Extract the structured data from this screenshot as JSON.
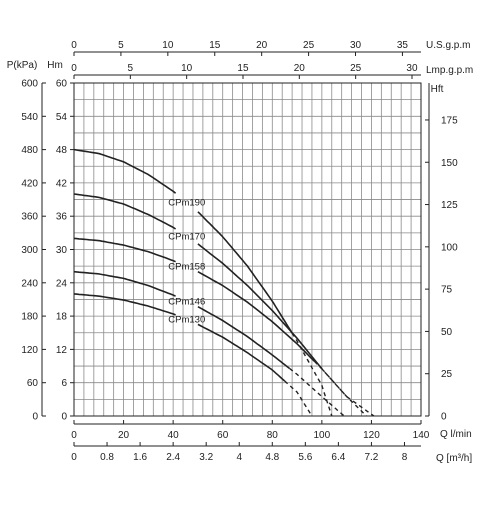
{
  "chart_data": {
    "type": "line",
    "axes": {
      "x_main": {
        "label": "Q  l/min",
        "min": 0,
        "max": 140,
        "ticks": [
          0,
          20,
          40,
          60,
          80,
          100,
          120,
          140
        ]
      },
      "x_m3h": {
        "label": "Q [m³/h]",
        "min": 0,
        "max": 8.4,
        "ticks": [
          0,
          0.8,
          1.6,
          2.4,
          3.2,
          4,
          4.8,
          5.6,
          6.4,
          7.2,
          8
        ],
        "tick_labels": [
          "0",
          "0.8",
          "1.6",
          "2.4",
          "3.2",
          "4",
          "4.8",
          "5.6",
          "6.4",
          "7.2",
          "8"
        ]
      },
      "x_usgpm": {
        "label": "U.S.g.p.m",
        "min": 0,
        "max": 36.98,
        "ticks": [
          0,
          5,
          10,
          15,
          20,
          25,
          30,
          35
        ]
      },
      "x_lmpgpm": {
        "label": "Lmp.g.p.m",
        "min": 0,
        "max": 30.8,
        "ticks": [
          0,
          5,
          10,
          15,
          20,
          25,
          30
        ]
      },
      "y_head_m": {
        "label": "Hm",
        "min": 0,
        "max": 60,
        "ticks": [
          0,
          6,
          12,
          18,
          24,
          30,
          36,
          42,
          48,
          54,
          60
        ]
      },
      "y_pressure": {
        "label": "P(kPa)",
        "min": 0,
        "max": 600,
        "ticks": [
          0,
          60,
          120,
          180,
          240,
          300,
          360,
          420,
          480,
          540,
          600
        ]
      },
      "y_head_ft": {
        "label": "Hft",
        "min": 0,
        "max": 196.85,
        "ticks": [
          0,
          25,
          50,
          75,
          100,
          125,
          150,
          175
        ]
      }
    },
    "grid": true,
    "series": [
      {
        "name": "CPm190",
        "x": [
          0,
          10,
          20,
          30,
          40,
          50,
          60,
          70,
          80,
          90,
          100,
          104
        ],
        "y": [
          48,
          47.3,
          45.8,
          43.5,
          40.5,
          36.8,
          32.3,
          27,
          20.7,
          13.5,
          5.5,
          0
        ],
        "dashed_from_x": 88,
        "label_at_x": 43
      },
      {
        "name": "CPm170",
        "x": [
          0,
          10,
          20,
          30,
          40,
          50,
          60,
          70,
          80,
          90,
          100,
          110,
          121
        ],
        "y": [
          40,
          39.4,
          38.2,
          36.3,
          34,
          31,
          27.5,
          23.5,
          19,
          14,
          8.5,
          3.5,
          0
        ],
        "dashed_from_x": 100,
        "label_at_x": 43
      },
      {
        "name": "CPm158",
        "x": [
          0,
          10,
          20,
          30,
          40,
          50,
          60,
          70,
          80,
          90,
          100,
          110,
          118
        ],
        "y": [
          32,
          31.6,
          30.8,
          29.6,
          28,
          26,
          23.5,
          20.5,
          17,
          13,
          8.5,
          3.5,
          0
        ],
        "dashed_from_x": 97,
        "label_at_x": 43
      },
      {
        "name": "CPm146",
        "x": [
          0,
          10,
          20,
          30,
          40,
          50,
          60,
          70,
          80,
          90,
          100,
          109
        ],
        "y": [
          26,
          25.6,
          24.8,
          23.5,
          21.8,
          19.7,
          17.2,
          14.3,
          11,
          7.5,
          3.5,
          0
        ],
        "dashed_from_x": 87,
        "label_at_x": 43
      },
      {
        "name": "CPm130",
        "x": [
          0,
          10,
          20,
          30,
          40,
          50,
          60,
          70,
          80,
          90,
          96
        ],
        "y": [
          22,
          21.6,
          20.9,
          19.8,
          18.4,
          16.5,
          14.2,
          11.4,
          8.3,
          4.3,
          0
        ],
        "dashed_from_x": 85,
        "label_at_x": 43
      }
    ]
  }
}
